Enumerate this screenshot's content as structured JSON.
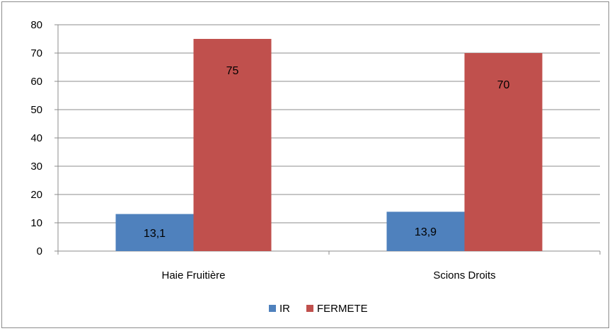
{
  "chart_data": {
    "type": "bar",
    "categories": [
      "Haie Fruitière",
      "Scions Droits"
    ],
    "series": [
      {
        "name": "IR",
        "values": [
          13.1,
          13.9
        ],
        "labels": [
          "13,1",
          "13,9"
        ],
        "color": "#4f81bd"
      },
      {
        "name": "FERMETE",
        "values": [
          75,
          70
        ],
        "labels": [
          "75",
          "70"
        ],
        "color": "#c0504d"
      }
    ],
    "ylim": [
      0,
      80
    ],
    "yticks": [
      0,
      10,
      20,
      30,
      40,
      50,
      60,
      70,
      80
    ],
    "grid": true,
    "legend_position": "bottom",
    "title": "",
    "xlabel": "",
    "ylabel": ""
  }
}
